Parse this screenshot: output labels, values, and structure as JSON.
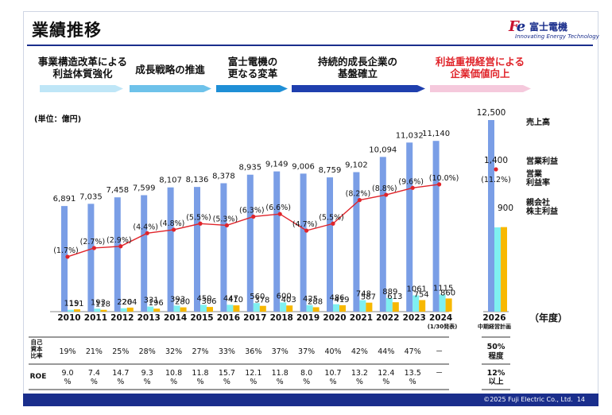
{
  "header": {
    "title": "業績推移"
  },
  "logo": {
    "mark": "Fe",
    "name_ja": "富士電機",
    "tagline": "Innovating Energy Technology"
  },
  "phases": [
    {
      "label": "事業構造改革による\n利益体質強化",
      "color": "#bfe6f7"
    },
    {
      "label": "成長戦略の推進",
      "color": "#6ec2ea"
    },
    {
      "label": "富士電機の\n更なる変革",
      "color": "#1f8fd6"
    },
    {
      "label": "持続的成長企業の\n基盤確立",
      "color": "#1f3fae"
    },
    {
      "label": "利益重視経営による\n企業価値向上",
      "color": "#f5c9dc",
      "label_color": "#e0242a"
    }
  ],
  "unit": "(単位：億円)",
  "chart_data": {
    "type": "bar",
    "categories": [
      "2010",
      "2011",
      "2012",
      "2013",
      "2014",
      "2015",
      "2016",
      "2017",
      "2018",
      "2019",
      "2020",
      "2021",
      "2022",
      "2023",
      "2024"
    ],
    "category_notes": {
      "2024": "(1/30発表)"
    },
    "ylim": [
      0,
      12500
    ],
    "series": [
      {
        "name": "売上高",
        "color": "#7a9ee6",
        "values": [
          6891,
          7035,
          7458,
          7599,
          8107,
          8136,
          8378,
          8935,
          9149,
          9006,
          8759,
          9102,
          10094,
          11032,
          11140
        ]
      },
      {
        "name": "営業利益",
        "color": "#7ff0f0",
        "values": [
          119,
          193,
          220,
          331,
          393,
          450,
          447,
          560,
          600,
          425,
          486,
          748,
          889,
          1061,
          1115
        ]
      },
      {
        "name": "親会社株主利益",
        "color": "#f7b800",
        "values": [
          151,
          118,
          264,
          196,
          280,
          306,
          410,
          378,
          403,
          288,
          419,
          587,
          613,
          754,
          860
        ]
      }
    ],
    "margin_series": {
      "name": "営業利益率",
      "color": "#e0242a",
      "values": [
        1.7,
        2.7,
        2.9,
        4.4,
        4.8,
        5.5,
        5.3,
        6.3,
        6.6,
        4.7,
        5.5,
        8.2,
        8.8,
        9.6,
        10.0
      ],
      "labels": [
        "(1.7%)",
        "(2.7%)",
        "(2.9%)",
        "(4.4%)",
        "(4.8%)",
        "(5.5%)",
        "(5.3%)",
        "(6.3%)",
        "(6.6%)",
        "(4.7%)",
        "(5.5%)",
        "(8.2%)",
        "(8.8%)",
        "(9.6%)",
        "(10.0%)"
      ]
    },
    "target": {
      "year": "2026",
      "note": "中期経営計画",
      "sales": 12500,
      "op_income": 1400,
      "net_income": 900,
      "margin_label": "(11.2%)"
    },
    "legend": [
      "売上高",
      "営業利益",
      "営業\n利益率",
      "親会社\n株主利益"
    ],
    "xlabel": "（年度）"
  },
  "table": {
    "row1_label": "自己\n資本\n比率",
    "row1_values": [
      "19%",
      "21%",
      "25%",
      "28%",
      "32%",
      "27%",
      "33%",
      "36%",
      "37%",
      "37%",
      "40%",
      "42%",
      "44%",
      "47%",
      "－"
    ],
    "row1_target": "50%\n程度",
    "row2_label": "ROE",
    "row2_values": [
      "9.0\n%",
      "7.4\n%",
      "14.7\n%",
      "9.3\n%",
      "10.8\n%",
      "11.8\n%",
      "15.7\n%",
      "12.1\n%",
      "11.8\n%",
      "8.0\n%",
      "10.7\n%",
      "13.2\n%",
      "12.4\n%",
      "13.5\n%",
      "－"
    ],
    "row2_target": "12%\n以上"
  },
  "footer": {
    "copyright": "©2025 Fuji Electric Co., Ltd.",
    "page": "14"
  }
}
